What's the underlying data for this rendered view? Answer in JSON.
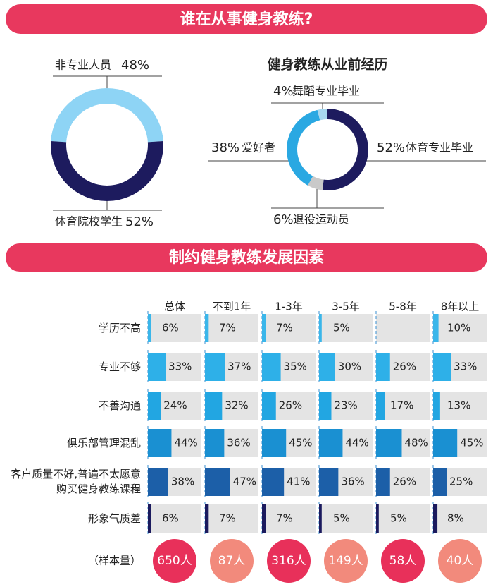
{
  "banners": [
    "谁在从事健身教练?",
    "制约健身教练发展因素"
  ],
  "chart_data": [
    {
      "type": "pie",
      "categories": [
        "非专业人员",
        "体育院校学生"
      ],
      "values": [
        48,
        52
      ],
      "value_labels": [
        "48%",
        "52%"
      ],
      "colors": [
        "#8ed4f5",
        "#1d1b5e"
      ]
    },
    {
      "type": "pie",
      "title": "健身教练从业前经历",
      "categories": [
        "体育专业毕业",
        "退役运动员",
        "爱好者",
        "舞蹈专业毕业"
      ],
      "values": [
        52,
        6,
        38,
        4
      ],
      "value_labels": [
        "52%",
        "6%",
        "38%",
        "4%"
      ],
      "colors": [
        "#1d1b5e",
        "#c9c9c9",
        "#2aa8e2",
        "#a8d8ef"
      ]
    },
    {
      "type": "bar",
      "orientation": "horizontal",
      "categories": [
        "学历不高",
        "专业不够",
        "不善沟通",
        "俱乐部管理混乱",
        "客户质量不好,普遍不太愿意购买健身教练课程",
        "形象气质差"
      ],
      "colors": [
        "#3ab6ea",
        "#2eb0e8",
        "#22a6e2",
        "#1a90d2",
        "#1c5fa8",
        "#1b1a5e"
      ],
      "xlim": [
        0,
        100
      ],
      "series": [
        {
          "name": "总体",
          "values": [
            6,
            33,
            24,
            44,
            38,
            6
          ],
          "value_labels": [
            "6%",
            "33%",
            "24%",
            "44%",
            "38%",
            "6%"
          ]
        },
        {
          "name": "不到1年",
          "values": [
            7,
            37,
            32,
            36,
            47,
            7
          ],
          "value_labels": [
            "7%",
            "37%",
            "32%",
            "36%",
            "47%",
            "7%"
          ]
        },
        {
          "name": "1-3年",
          "values": [
            7,
            35,
            26,
            45,
            41,
            7
          ],
          "value_labels": [
            "7%",
            "35%",
            "26%",
            "45%",
            "41%",
            "7%"
          ]
        },
        {
          "name": "3-5年",
          "values": [
            5,
            30,
            23,
            44,
            36,
            5
          ],
          "value_labels": [
            "5%",
            "30%",
            "23%",
            "44%",
            "36%",
            "5%"
          ]
        },
        {
          "name": "5-8年",
          "values": [
            null,
            26,
            17,
            48,
            26,
            5
          ],
          "value_labels": [
            null,
            "26%",
            "17%",
            "48%",
            "26%",
            "5%"
          ]
        },
        {
          "name": "8年以上",
          "values": [
            10,
            33,
            13,
            45,
            25,
            8
          ],
          "value_labels": [
            "10%",
            "33%",
            "13%",
            "45%",
            "25%",
            "8%"
          ]
        }
      ],
      "sample": {
        "label": "（样本量）",
        "values": [
          650,
          87,
          316,
          149,
          58,
          40
        ],
        "value_labels": [
          "650人",
          "87人",
          "316人",
          "149人",
          "58人",
          "40人"
        ]
      }
    }
  ]
}
